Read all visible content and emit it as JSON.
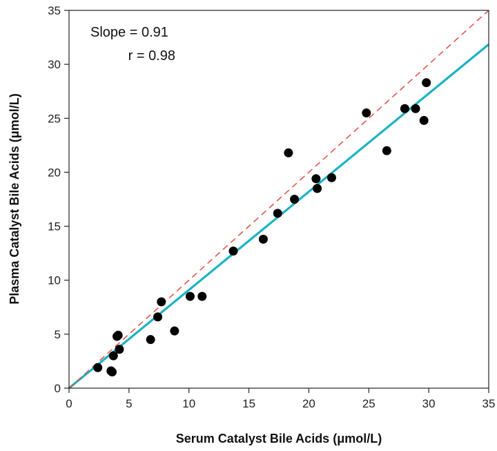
{
  "chart_data": {
    "type": "scatter",
    "xlabel": "Serum Catalyst Bile Acids (μmol/L)",
    "ylabel": "Plasma Catalyst Bile Acids (μmol/L)",
    "xlim": [
      0,
      35
    ],
    "ylim": [
      0,
      35
    ],
    "xticks": [
      "0",
      "5",
      "10",
      "15",
      "20",
      "25",
      "30",
      "35"
    ],
    "yticks": [
      "0",
      "5",
      "10",
      "15",
      "20",
      "25",
      "30",
      "35"
    ],
    "grid": false,
    "annotations": {
      "slope_text": "Slope = 0.91",
      "r_text": "r = 0.98"
    },
    "points": [
      [
        2.4,
        1.9
      ],
      [
        3.5,
        1.6
      ],
      [
        3.6,
        1.5
      ],
      [
        3.7,
        3.0
      ],
      [
        4.0,
        4.8
      ],
      [
        4.1,
        4.9
      ],
      [
        4.2,
        3.6
      ],
      [
        6.8,
        4.5
      ],
      [
        7.4,
        6.6
      ],
      [
        7.7,
        8.0
      ],
      [
        8.8,
        5.3
      ],
      [
        10.1,
        8.5
      ],
      [
        11.1,
        8.5
      ],
      [
        13.7,
        12.7
      ],
      [
        16.2,
        13.8
      ],
      [
        17.4,
        16.2
      ],
      [
        18.3,
        21.8
      ],
      [
        18.8,
        17.5
      ],
      [
        20.6,
        19.4
      ],
      [
        20.7,
        18.5
      ],
      [
        21.9,
        19.5
      ],
      [
        24.8,
        25.5
      ],
      [
        26.5,
        22.0
      ],
      [
        28.0,
        25.9
      ],
      [
        28.9,
        25.9
      ],
      [
        29.6,
        24.8
      ],
      [
        29.8,
        28.3
      ]
    ],
    "series": [
      {
        "type": "regression_line",
        "slope": 0.91,
        "intercept": 0,
        "color": "#1ab3c4"
      },
      {
        "type": "identity_line",
        "slope": 1,
        "intercept": 0,
        "color": "#e0574a",
        "dashed": true
      }
    ],
    "point_color": "#000000"
  }
}
